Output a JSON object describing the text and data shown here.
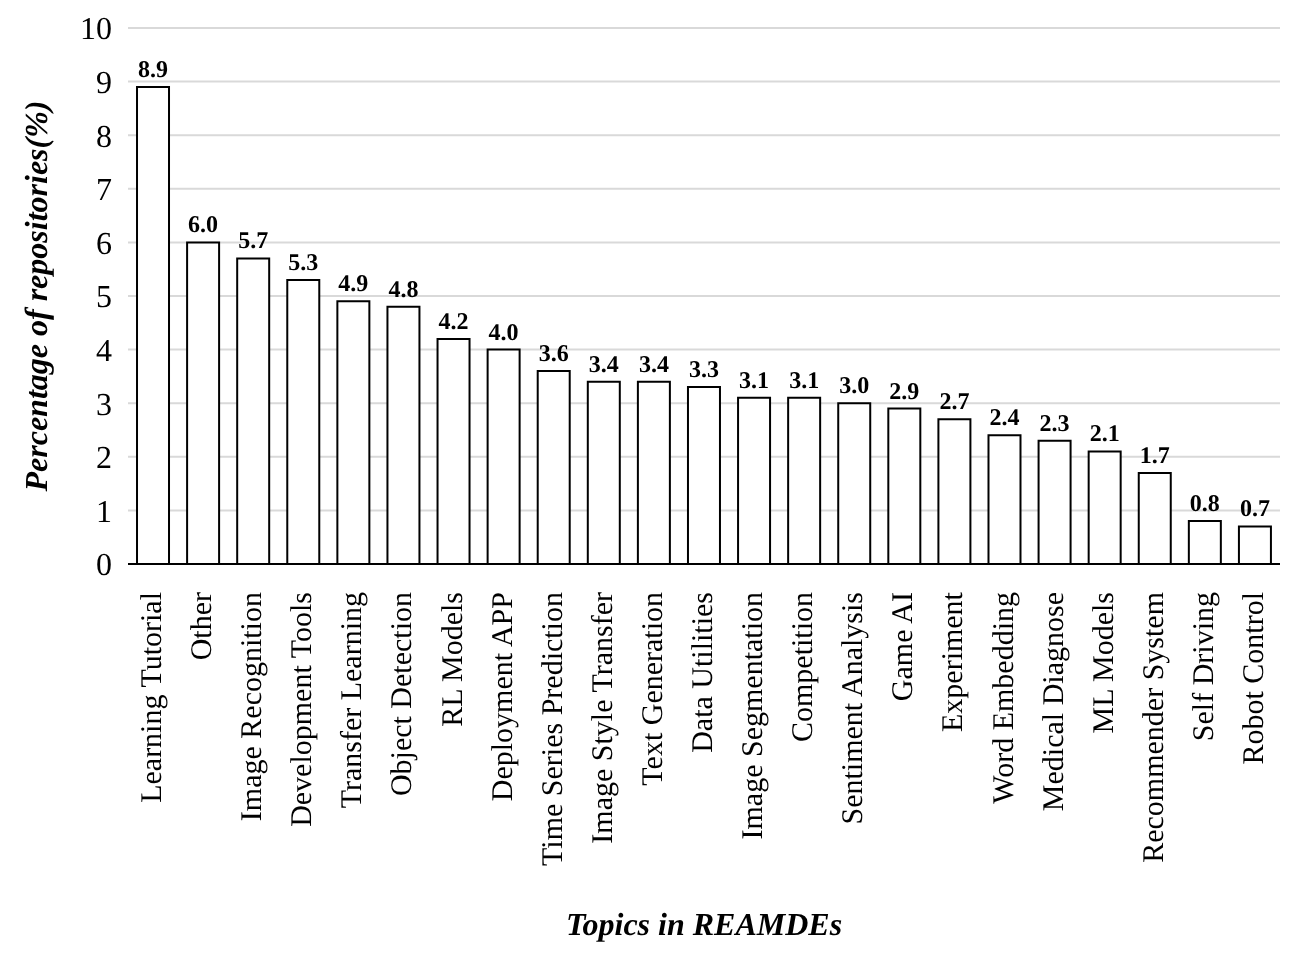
{
  "chart_data": {
    "type": "bar",
    "xlabel": "Topics in REAMDEs",
    "ylabel": "Percentage of repositories(%)",
    "categories": [
      "Learning Tutorial",
      "Other",
      "Image Recognition",
      "Development Tools",
      "Transfer Learning",
      "Object Detection",
      "RL Models",
      "Deployment APP",
      "Time Series Prediction",
      "Image Style Transfer",
      "Text Generation",
      "Data Utilities",
      "Image Segmentation",
      "Competition",
      "Sentiment Analysis",
      "Game AI",
      "Experiment",
      "Word Embedding",
      "Medical Diagnose",
      "ML Models",
      "Recommender System",
      "Self Driving",
      "Robot Control"
    ],
    "values": [
      8.9,
      6.0,
      5.7,
      5.3,
      4.9,
      4.8,
      4.2,
      4.0,
      3.6,
      3.4,
      3.4,
      3.3,
      3.1,
      3.1,
      3.0,
      2.9,
      2.7,
      2.4,
      2.3,
      2.1,
      1.7,
      0.8,
      0.7
    ],
    "value_labels": [
      "8.9",
      "6.0",
      "5.7",
      "5.3",
      "4.9",
      "4.8",
      "4.2",
      "4.0",
      "3.6",
      "3.4",
      "3.4",
      "3.3",
      "3.1",
      "3.1",
      "3.0",
      "2.9",
      "2.7",
      "2.4",
      "2.3",
      "2.1",
      "1.7",
      "0.8",
      "0.7"
    ],
    "color": "#ffffff",
    "ylim": [
      0,
      10
    ],
    "yticks": [
      0,
      1,
      2,
      3,
      4,
      5,
      6,
      7,
      8,
      9,
      10
    ],
    "grid": "y"
  }
}
